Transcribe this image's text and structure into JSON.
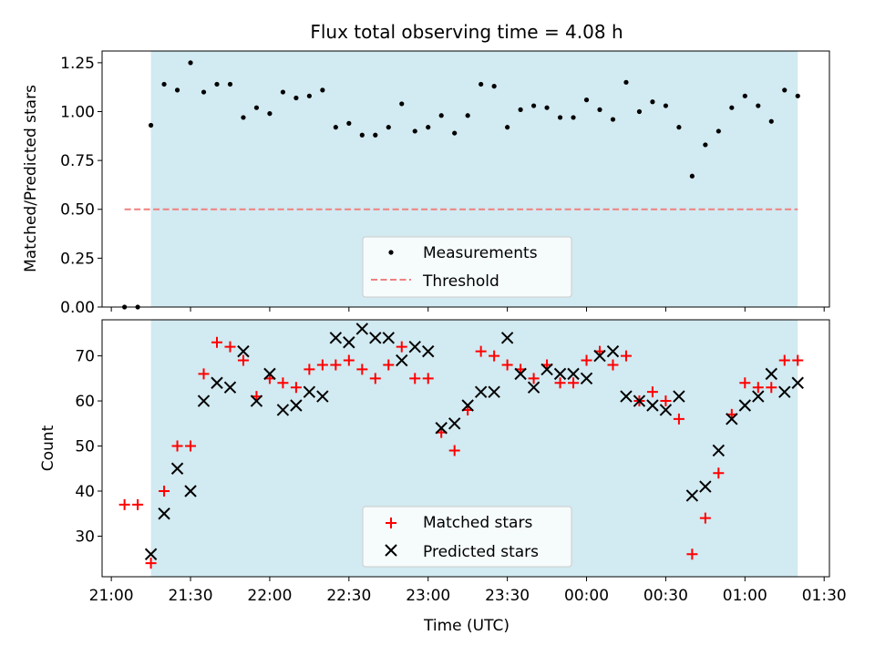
{
  "chart_data": [
    {
      "type": "scatter",
      "title": "Flux total observing time = 4.08 h",
      "xlabel": "",
      "ylabel": "Matched/Predicted stars",
      "xlim": [
        "21:00",
        "01:30"
      ],
      "ylim": [
        0,
        1.31
      ],
      "yticks": [
        "0.00",
        "0.25",
        "0.50",
        "0.75",
        "1.00",
        "1.25"
      ],
      "observing_window": [
        "21:15",
        "01:20"
      ],
      "threshold": 0.5,
      "legend": [
        "Measurements",
        "Threshold"
      ],
      "legend_position": "lower center",
      "series": [
        {
          "name": "Measurements",
          "marker": "dot",
          "color": "#000000",
          "x": [
            "21:05",
            "21:10",
            "21:15",
            "21:20",
            "21:25",
            "21:30",
            "21:35",
            "21:40",
            "21:45",
            "21:50",
            "21:55",
            "22:00",
            "22:05",
            "22:10",
            "22:15",
            "22:20",
            "22:25",
            "22:30",
            "22:35",
            "22:40",
            "22:45",
            "22:50",
            "22:55",
            "23:00",
            "23:05",
            "23:10",
            "23:15",
            "23:20",
            "23:25",
            "23:30",
            "23:35",
            "23:40",
            "23:45",
            "23:50",
            "23:55",
            "00:00",
            "00:05",
            "00:10",
            "00:15",
            "00:20",
            "00:25",
            "00:30",
            "00:35",
            "00:40",
            "00:45",
            "00:50",
            "00:55",
            "01:00",
            "01:05",
            "01:10",
            "01:15",
            "01:20"
          ],
          "y": [
            0.0,
            0.0,
            0.93,
            1.14,
            1.11,
            1.25,
            1.1,
            1.14,
            1.14,
            0.97,
            1.02,
            0.99,
            1.1,
            1.07,
            1.08,
            1.11,
            0.92,
            0.94,
            0.88,
            0.88,
            0.92,
            1.04,
            0.9,
            0.92,
            0.98,
            0.89,
            0.98,
            1.14,
            1.13,
            0.92,
            1.01,
            1.03,
            1.02,
            0.97,
            0.97,
            1.06,
            1.01,
            0.96,
            1.15,
            1.0,
            1.05,
            1.03,
            0.92,
            0.67,
            0.83,
            0.9,
            1.02,
            1.08,
            1.03,
            0.95,
            1.11,
            1.08
          ]
        },
        {
          "name": "Threshold",
          "line": "dashed",
          "color": "#f08080",
          "x": [
            "21:05",
            "01:20"
          ],
          "y": [
            0.5,
            0.5
          ]
        }
      ]
    },
    {
      "type": "scatter",
      "title": "",
      "xlabel": "Time (UTC)",
      "ylabel": "Count",
      "xlim": [
        "21:00",
        "01:30"
      ],
      "ylim": [
        21,
        78
      ],
      "yticks": [
        "30",
        "40",
        "50",
        "60",
        "70"
      ],
      "xticks": [
        "21:00",
        "21:30",
        "22:00",
        "22:30",
        "23:00",
        "23:30",
        "00:00",
        "00:30",
        "01:00",
        "01:30"
      ],
      "observing_window": [
        "21:15",
        "01:20"
      ],
      "legend": [
        "Matched stars",
        "Predicted stars"
      ],
      "legend_position": "lower center",
      "series": [
        {
          "name": "Matched stars",
          "marker": "plus",
          "color": "#ff0000",
          "x": [
            "21:05",
            "21:10",
            "21:15",
            "21:20",
            "21:25",
            "21:30",
            "21:35",
            "21:40",
            "21:45",
            "21:50",
            "21:55",
            "22:00",
            "22:05",
            "22:10",
            "22:15",
            "22:20",
            "22:25",
            "22:30",
            "22:35",
            "22:40",
            "22:45",
            "22:50",
            "22:55",
            "23:00",
            "23:05",
            "23:10",
            "23:15",
            "23:20",
            "23:25",
            "23:30",
            "23:35",
            "23:40",
            "23:45",
            "23:50",
            "23:55",
            "00:00",
            "00:05",
            "00:10",
            "00:15",
            "00:20",
            "00:25",
            "00:30",
            "00:35",
            "00:40",
            "00:45",
            "00:50",
            "00:55",
            "01:00",
            "01:05",
            "01:10",
            "01:15",
            "01:20"
          ],
          "y": [
            37,
            37,
            24,
            40,
            50,
            50,
            66,
            73,
            72,
            69,
            61,
            65,
            64,
            63,
            67,
            68,
            68,
            69,
            67,
            65,
            68,
            72,
            65,
            65,
            53,
            49,
            58,
            71,
            70,
            68,
            67,
            65,
            68,
            64,
            64,
            69,
            71,
            68,
            70,
            60,
            62,
            60,
            56,
            26,
            34,
            44,
            57,
            64,
            63,
            63,
            69,
            69
          ]
        },
        {
          "name": "Predicted stars",
          "marker": "x",
          "color": "#000000",
          "x": [
            "21:15",
            "21:20",
            "21:25",
            "21:30",
            "21:35",
            "21:40",
            "21:45",
            "21:50",
            "21:55",
            "22:00",
            "22:05",
            "22:10",
            "22:15",
            "22:20",
            "22:25",
            "22:30",
            "22:35",
            "22:40",
            "22:45",
            "22:50",
            "22:55",
            "23:00",
            "23:05",
            "23:10",
            "23:15",
            "23:20",
            "23:25",
            "23:30",
            "23:35",
            "23:40",
            "23:45",
            "23:50",
            "23:55",
            "00:00",
            "00:05",
            "00:10",
            "00:15",
            "00:20",
            "00:25",
            "00:30",
            "00:35",
            "00:40",
            "00:45",
            "00:50",
            "00:55",
            "01:00",
            "01:05",
            "01:10",
            "01:15",
            "01:20"
          ],
          "y": [
            26,
            35,
            45,
            40,
            60,
            64,
            63,
            71,
            60,
            66,
            58,
            59,
            62,
            61,
            74,
            73,
            76,
            74,
            74,
            69,
            72,
            71,
            54,
            55,
            59,
            62,
            62,
            74,
            66,
            63,
            67,
            66,
            66,
            65,
            70,
            71,
            61,
            60,
            59,
            58,
            61,
            39,
            41,
            49,
            56,
            59,
            61,
            66,
            62,
            64
          ]
        }
      ]
    }
  ],
  "colors": {
    "window": "#add8e6",
    "threshold": "#f08080",
    "matched": "#ff0000",
    "predicted": "#000000",
    "measurements": "#000000"
  }
}
